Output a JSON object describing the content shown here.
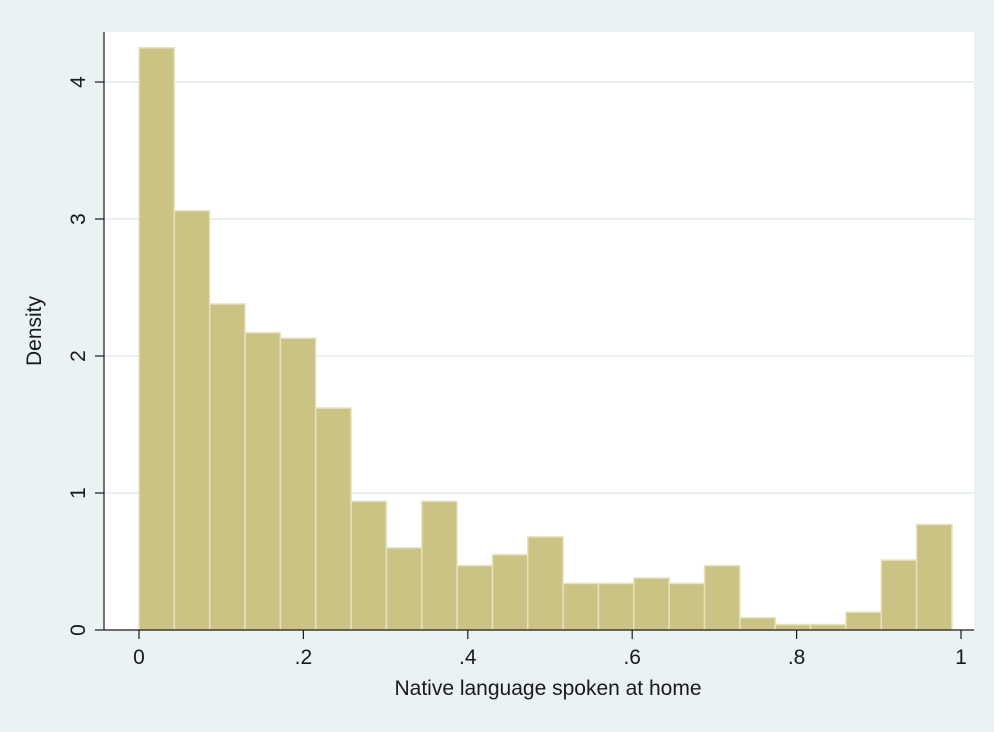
{
  "chart_data": {
    "type": "bar",
    "subtype": "histogram",
    "xlabel": "Native language spoken at home",
    "ylabel": "Density",
    "xlim": [
      0,
      1
    ],
    "ylim": [
      0,
      4.25
    ],
    "x_ticks": [
      {
        "value": 0,
        "label": "0"
      },
      {
        "value": 0.2,
        "label": ".2"
      },
      {
        "value": 0.4,
        "label": ".4"
      },
      {
        "value": 0.6,
        "label": ".6"
      },
      {
        "value": 0.8,
        "label": ".8"
      },
      {
        "value": 1,
        "label": "1"
      }
    ],
    "y_ticks": [
      {
        "value": 0,
        "label": "0"
      },
      {
        "value": 1,
        "label": "1"
      },
      {
        "value": 2,
        "label": "2"
      },
      {
        "value": 3,
        "label": "3"
      },
      {
        "value": 4,
        "label": "4"
      }
    ],
    "bin_start": 0,
    "bin_width": 0.043,
    "values": [
      4.25,
      3.06,
      2.38,
      2.17,
      2.13,
      1.62,
      0.94,
      0.6,
      0.94,
      0.47,
      0.55,
      0.68,
      0.34,
      0.34,
      0.38,
      0.34,
      0.47,
      0.09,
      0.04,
      0.04,
      0.13,
      0.51,
      0.77
    ],
    "grid": "horizontal",
    "legend": "none",
    "colors": {
      "background": "#eaf2f3",
      "plot_area": "#ffffff",
      "bar_fill": "#cbc383",
      "bar_edge": "#e7e2c0",
      "grid": "#e3eced",
      "axis": "#1a1a1a"
    }
  }
}
